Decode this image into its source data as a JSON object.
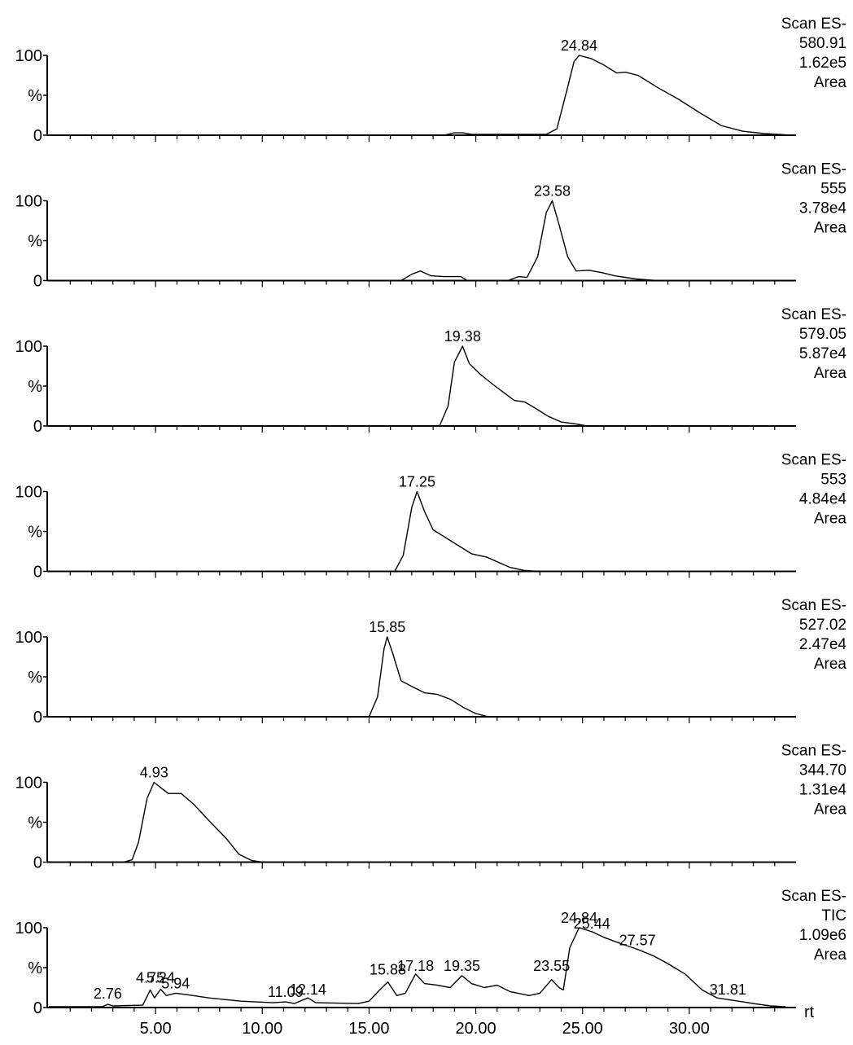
{
  "chart_data": [
    {
      "type": "line",
      "y_ticks": [
        "100",
        "%",
        "0"
      ],
      "ylim": [
        0,
        100
      ],
      "xlim": [
        0,
        35
      ],
      "trace_info": [
        "Scan ES-",
        "580.91",
        "1.62e5",
        "Area"
      ],
      "peak_labels": [
        {
          "x": 24.84,
          "y": 100,
          "text": "24.84"
        }
      ],
      "series": [
        {
          "values": [
            [
              0,
              0
            ],
            [
              18.5,
              0
            ],
            [
              19.0,
              3
            ],
            [
              19.4,
              3
            ],
            [
              19.8,
              1
            ],
            [
              23.3,
              1
            ],
            [
              23.8,
              8
            ],
            [
              24.3,
              60
            ],
            [
              24.6,
              92
            ],
            [
              24.84,
              100
            ],
            [
              25.4,
              96
            ],
            [
              26.0,
              88
            ],
            [
              26.6,
              78
            ],
            [
              27.0,
              79
            ],
            [
              27.6,
              75
            ],
            [
              28.5,
              60
            ],
            [
              29.5,
              45
            ],
            [
              30.5,
              28
            ],
            [
              31.5,
              12
            ],
            [
              32.5,
              5
            ],
            [
              33.5,
              2
            ],
            [
              34.5,
              0.5
            ]
          ]
        }
      ]
    },
    {
      "type": "line",
      "y_ticks": [
        "100",
        "%",
        "0"
      ],
      "ylim": [
        0,
        100
      ],
      "xlim": [
        0,
        35
      ],
      "trace_info": [
        "Scan ES-",
        "555",
        "3.78e4",
        "Area"
      ],
      "peak_labels": [
        {
          "x": 23.58,
          "y": 100,
          "text": "23.58"
        }
      ],
      "series": [
        {
          "values": [
            [
              0,
              0
            ],
            [
              16.5,
              0
            ],
            [
              17.0,
              8
            ],
            [
              17.4,
              12
            ],
            [
              17.9,
              6
            ],
            [
              18.5,
              5
            ],
            [
              19.3,
              5
            ],
            [
              19.6,
              0
            ],
            [
              21.5,
              0
            ],
            [
              22.0,
              5
            ],
            [
              22.4,
              4
            ],
            [
              22.9,
              30
            ],
            [
              23.3,
              85
            ],
            [
              23.58,
              100
            ],
            [
              23.9,
              70
            ],
            [
              24.3,
              30
            ],
            [
              24.7,
              12
            ],
            [
              25.3,
              13
            ],
            [
              25.9,
              10
            ],
            [
              26.5,
              6
            ],
            [
              27.5,
              2
            ],
            [
              28.5,
              0
            ],
            [
              34.5,
              0
            ]
          ]
        }
      ]
    },
    {
      "type": "line",
      "y_ticks": [
        "100",
        "%",
        "0"
      ],
      "ylim": [
        0,
        100
      ],
      "xlim": [
        0,
        35
      ],
      "trace_info": [
        "Scan ES-",
        "579.05",
        "5.87e4",
        "Area"
      ],
      "peak_labels": [
        {
          "x": 19.38,
          "y": 100,
          "text": "19.38"
        }
      ],
      "series": [
        {
          "values": [
            [
              0,
              0
            ],
            [
              18.3,
              0
            ],
            [
              18.7,
              25
            ],
            [
              19.0,
              80
            ],
            [
              19.38,
              100
            ],
            [
              19.7,
              78
            ],
            [
              20.2,
              65
            ],
            [
              20.8,
              52
            ],
            [
              21.3,
              42
            ],
            [
              21.8,
              32
            ],
            [
              22.3,
              30
            ],
            [
              22.8,
              22
            ],
            [
              23.4,
              12
            ],
            [
              24.0,
              5
            ],
            [
              24.8,
              2
            ],
            [
              25.2,
              0
            ],
            [
              34.5,
              0
            ]
          ]
        }
      ]
    },
    {
      "type": "line",
      "y_ticks": [
        "100",
        "%",
        "0"
      ],
      "ylim": [
        0,
        100
      ],
      "xlim": [
        0,
        35
      ],
      "trace_info": [
        "Scan ES-",
        "553",
        "4.84e4",
        "Area"
      ],
      "peak_labels": [
        {
          "x": 17.25,
          "y": 100,
          "text": "17.25"
        }
      ],
      "series": [
        {
          "values": [
            [
              0,
              0
            ],
            [
              16.2,
              0
            ],
            [
              16.6,
              20
            ],
            [
              17.0,
              80
            ],
            [
              17.25,
              100
            ],
            [
              17.6,
              75
            ],
            [
              18.0,
              52
            ],
            [
              18.6,
              42
            ],
            [
              19.2,
              32
            ],
            [
              19.8,
              22
            ],
            [
              20.5,
              18
            ],
            [
              21.0,
              12
            ],
            [
              21.6,
              5
            ],
            [
              22.3,
              1
            ],
            [
              23.0,
              0
            ],
            [
              34.5,
              0
            ]
          ]
        }
      ]
    },
    {
      "type": "line",
      "y_ticks": [
        "100",
        "%",
        "0"
      ],
      "ylim": [
        0,
        100
      ],
      "xlim": [
        0,
        35
      ],
      "trace_info": [
        "Scan ES-",
        "527.02",
        "2.47e4",
        "Area"
      ],
      "peak_labels": [
        {
          "x": 15.85,
          "y": 100,
          "text": "15.85"
        }
      ],
      "series": [
        {
          "values": [
            [
              0,
              0
            ],
            [
              15.0,
              0
            ],
            [
              15.4,
              25
            ],
            [
              15.7,
              85
            ],
            [
              15.85,
              100
            ],
            [
              16.1,
              80
            ],
            [
              16.5,
              45
            ],
            [
              17.0,
              38
            ],
            [
              17.6,
              30
            ],
            [
              18.2,
              28
            ],
            [
              18.8,
              22
            ],
            [
              19.4,
              12
            ],
            [
              20.0,
              4
            ],
            [
              20.6,
              0
            ],
            [
              34.5,
              0
            ]
          ]
        }
      ]
    },
    {
      "type": "line",
      "y_ticks": [
        "100",
        "%",
        "0"
      ],
      "ylim": [
        0,
        100
      ],
      "xlim": [
        0,
        35
      ],
      "trace_info": [
        "Scan ES-",
        "344.70",
        "1.31e4",
        "Area"
      ],
      "peak_labels": [
        {
          "x": 4.93,
          "y": 100,
          "text": "4.93"
        }
      ],
      "series": [
        {
          "values": [
            [
              0,
              0
            ],
            [
              3.5,
              0
            ],
            [
              3.9,
              3
            ],
            [
              4.2,
              25
            ],
            [
              4.6,
              80
            ],
            [
              4.93,
              100
            ],
            [
              5.3,
              92
            ],
            [
              5.6,
              86
            ],
            [
              6.2,
              86
            ],
            [
              6.8,
              72
            ],
            [
              7.5,
              52
            ],
            [
              8.3,
              30
            ],
            [
              8.9,
              10
            ],
            [
              9.5,
              2
            ],
            [
              10.0,
              0
            ],
            [
              34.5,
              0
            ]
          ]
        }
      ]
    },
    {
      "type": "line",
      "y_ticks": [
        "100",
        "%",
        "0"
      ],
      "ylim": [
        0,
        100
      ],
      "xlim": [
        0,
        35
      ],
      "trace_info": [
        "Scan ES-",
        "TIC",
        "1.09e6",
        "Area"
      ],
      "x_ticks": [
        "5.00",
        "10.00",
        "15.00",
        "20.00",
        "25.00",
        "30.00"
      ],
      "x_tick_values": [
        5,
        10,
        15,
        20,
        25,
        30
      ],
      "x_axis_end_label": "rt",
      "peak_labels": [
        {
          "x": 2.76,
          "y": 5,
          "text": "2.76"
        },
        {
          "x": 4.75,
          "y": 25,
          "text": "4.75"
        },
        {
          "x": 5.24,
          "y": 25,
          "text": "5.24"
        },
        {
          "x": 5.94,
          "y": 18,
          "text": "5.94"
        },
        {
          "x": 11.09,
          "y": 7,
          "text": "11.09"
        },
        {
          "x": 12.14,
          "y": 10,
          "text": "12.14"
        },
        {
          "x": 15.88,
          "y": 35,
          "text": "15.88"
        },
        {
          "x": 17.18,
          "y": 40,
          "text": "17.18"
        },
        {
          "x": 19.35,
          "y": 40,
          "text": "19.35"
        },
        {
          "x": 23.55,
          "y": 40,
          "text": "23.55"
        },
        {
          "x": 24.84,
          "y": 100,
          "text": "24.84"
        },
        {
          "x": 25.44,
          "y": 93,
          "text": "25.44"
        },
        {
          "x": 27.57,
          "y": 72,
          "text": "27.57"
        },
        {
          "x": 31.81,
          "y": 10,
          "text": "31.81"
        }
      ],
      "series": [
        {
          "values": [
            [
              0,
              1
            ],
            [
              2.5,
              1
            ],
            [
              2.76,
              4
            ],
            [
              3.0,
              2
            ],
            [
              4.4,
              3
            ],
            [
              4.75,
              22
            ],
            [
              4.95,
              12
            ],
            [
              5.24,
              23
            ],
            [
              5.5,
              15
            ],
            [
              5.94,
              18
            ],
            [
              6.5,
              16
            ],
            [
              7.5,
              12
            ],
            [
              9.0,
              8
            ],
            [
              10.5,
              6
            ],
            [
              11.09,
              7
            ],
            [
              11.5,
              5
            ],
            [
              12.14,
              12
            ],
            [
              12.5,
              6
            ],
            [
              14.5,
              5
            ],
            [
              15.0,
              8
            ],
            [
              15.5,
              22
            ],
            [
              15.88,
              32
            ],
            [
              16.3,
              15
            ],
            [
              16.7,
              18
            ],
            [
              17.18,
              42
            ],
            [
              17.6,
              30
            ],
            [
              18.2,
              28
            ],
            [
              18.8,
              25
            ],
            [
              19.35,
              40
            ],
            [
              19.8,
              30
            ],
            [
              20.4,
              25
            ],
            [
              21.0,
              28
            ],
            [
              21.6,
              20
            ],
            [
              22.5,
              15
            ],
            [
              23.0,
              18
            ],
            [
              23.55,
              35
            ],
            [
              23.9,
              25
            ],
            [
              24.1,
              22
            ],
            [
              24.4,
              75
            ],
            [
              24.84,
              100
            ],
            [
              25.44,
              95
            ],
            [
              26.0,
              88
            ],
            [
              26.8,
              80
            ],
            [
              27.57,
              73
            ],
            [
              28.3,
              65
            ],
            [
              29.0,
              55
            ],
            [
              29.8,
              42
            ],
            [
              30.6,
              22
            ],
            [
              31.3,
              12
            ],
            [
              31.81,
              10
            ],
            [
              32.3,
              8
            ],
            [
              33.0,
              5
            ],
            [
              33.8,
              2
            ],
            [
              34.5,
              1
            ]
          ]
        }
      ]
    }
  ]
}
